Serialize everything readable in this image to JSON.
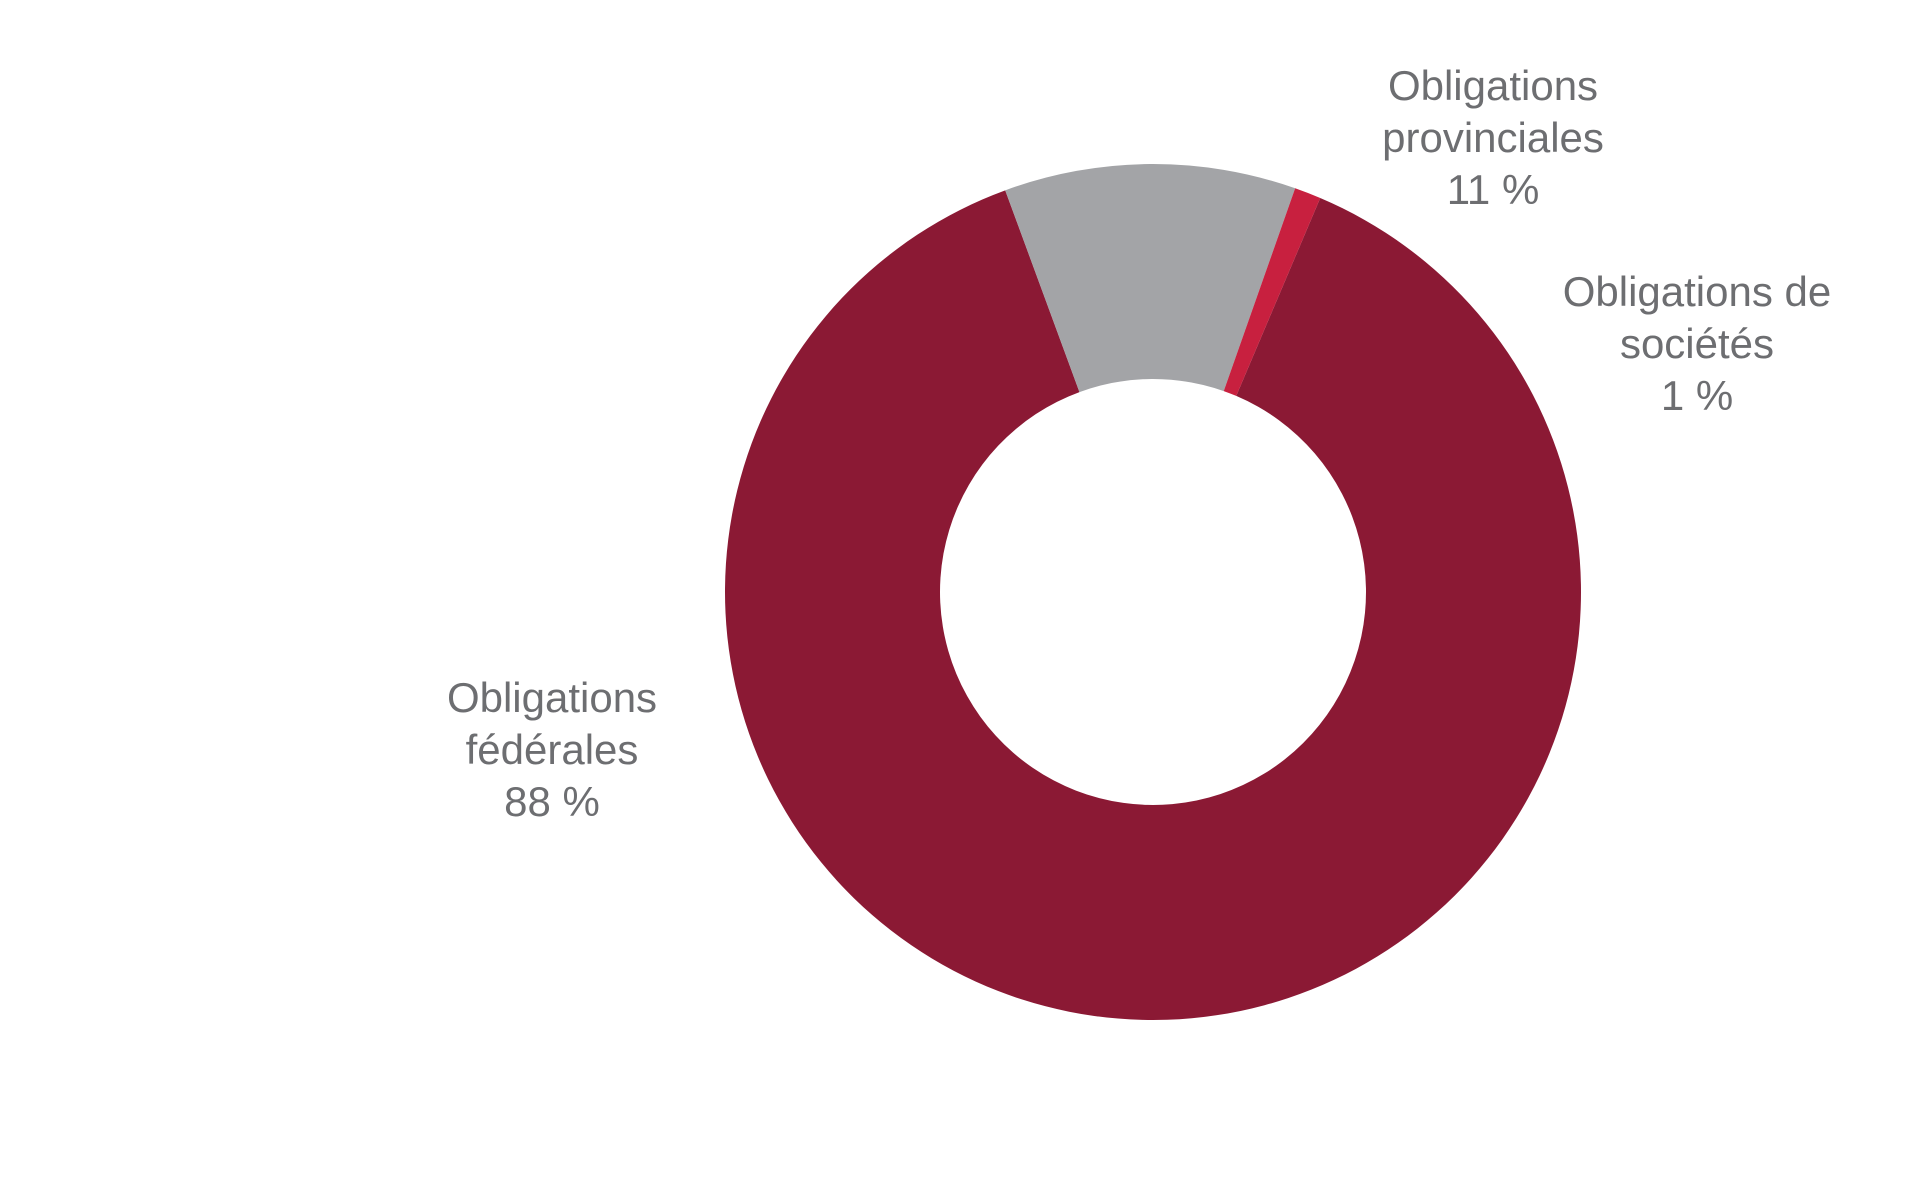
{
  "chart_data": {
    "type": "pie",
    "variant": "donut",
    "title": "",
    "categories": [
      "Obligations fédérales",
      "Obligations provinciales",
      "Obligations de sociétés"
    ],
    "values": [
      88,
      11,
      1
    ],
    "unit": "%",
    "labels": [
      {
        "lines": [
          "Obligations",
          "fédérales",
          "88 %"
        ]
      },
      {
        "lines": [
          "Obligations",
          "provinciales",
          "11 %"
        ]
      },
      {
        "lines": [
          "Obligations de",
          "sociétés",
          "1 %"
        ]
      }
    ],
    "colors": [
      "#8b1934",
      "#a3a4a7",
      "#c8203f"
    ],
    "label_color": "#6d6e71",
    "legend": "none",
    "grid": false
  }
}
